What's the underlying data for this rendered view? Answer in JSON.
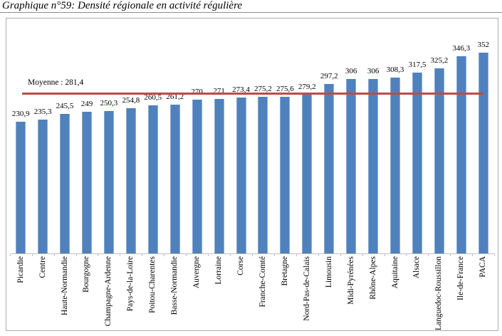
{
  "title": "Graphique n°59: Densité régionale en activité régulière",
  "chart_data": {
    "type": "bar",
    "title": "Graphique n°59: Densité régionale en activité régulière",
    "xlabel": "",
    "ylabel": "",
    "categories": [
      "Picardie",
      "Centre",
      "Haute-Normandie",
      "Bourgogne",
      "Champagne-Ardenne",
      "Pays-de-la-Loire",
      "Poitou-Charentes",
      "Basse-Normandie",
      "Auvergne",
      "Lorraine",
      "Corse",
      "Franche-Comté",
      "Bretagne",
      "Nord-Pas-de-Calais",
      "Limousin",
      "Midi-Pyrénées",
      "Rhône-Alpes",
      "Aquitaine",
      "Alsace",
      "Languedoc-Roussillon",
      "Ile-de-France",
      "PACA"
    ],
    "values": [
      230.9,
      235.3,
      245.5,
      249,
      250.3,
      254.8,
      260.5,
      261.2,
      270,
      271,
      273.4,
      275.2,
      275.6,
      279.2,
      297.2,
      306,
      306,
      308.3,
      317.5,
      325.2,
      346.3,
      352
    ],
    "value_labels": [
      "230,9",
      "235,3",
      "245,5",
      "249",
      "250,3",
      "254,8",
      "260,5",
      "261,2",
      "270",
      "271",
      "273,4",
      "275,2",
      "275,6",
      "279,2",
      "297,2",
      "306",
      "306",
      "308,3",
      "317,5",
      "325,2",
      "346,3",
      "352"
    ],
    "mean": {
      "label": "Moyenne : 281,4",
      "value": 281.4
    },
    "ylim": [
      0,
      400
    ],
    "grid": false,
    "legend": false,
    "bar_color": "#4F81BD",
    "bar_edge_color": "#8CABD3",
    "mean_line_color": "#BE4B48",
    "axis_color": "#BFBFBF"
  }
}
